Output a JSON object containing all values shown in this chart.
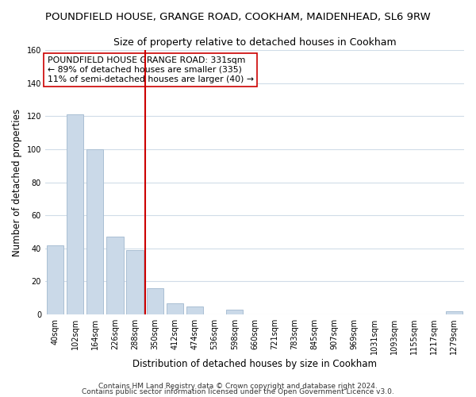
{
  "title": "POUNDFIELD HOUSE, GRANGE ROAD, COOKHAM, MAIDENHEAD, SL6 9RW",
  "subtitle": "Size of property relative to detached houses in Cookham",
  "xlabel": "Distribution of detached houses by size in Cookham",
  "ylabel": "Number of detached properties",
  "bar_color": "#cad9e8",
  "bar_edge_color": "#aabfd4",
  "bin_labels": [
    "40sqm",
    "102sqm",
    "164sqm",
    "226sqm",
    "288sqm",
    "350sqm",
    "412sqm",
    "474sqm",
    "536sqm",
    "598sqm",
    "660sqm",
    "721sqm",
    "783sqm",
    "845sqm",
    "907sqm",
    "969sqm",
    "1031sqm",
    "1093sqm",
    "1155sqm",
    "1217sqm",
    "1279sqm"
  ],
  "bar_heights": [
    42,
    121,
    100,
    47,
    39,
    16,
    7,
    5,
    0,
    3,
    0,
    0,
    0,
    0,
    0,
    0,
    0,
    0,
    0,
    0,
    2
  ],
  "vline_x_index": 5,
  "vline_color": "#cc0000",
  "ylim": [
    0,
    160
  ],
  "yticks": [
    0,
    20,
    40,
    60,
    80,
    100,
    120,
    140,
    160
  ],
  "annotation_title": "POUNDFIELD HOUSE GRANGE ROAD: 331sqm",
  "annotation_line1": "← 89% of detached houses are smaller (335)",
  "annotation_line2": "11% of semi-detached houses are larger (40) →",
  "footer1": "Contains HM Land Registry data © Crown copyright and database right 2024.",
  "footer2": "Contains public sector information licensed under the Open Government Licence v3.0.",
  "background_color": "#ffffff",
  "grid_color": "#d0dce8",
  "title_fontsize": 9.5,
  "subtitle_fontsize": 9,
  "axis_label_fontsize": 8.5,
  "tick_fontsize": 7,
  "annotation_fontsize": 7.8,
  "footer_fontsize": 6.5
}
